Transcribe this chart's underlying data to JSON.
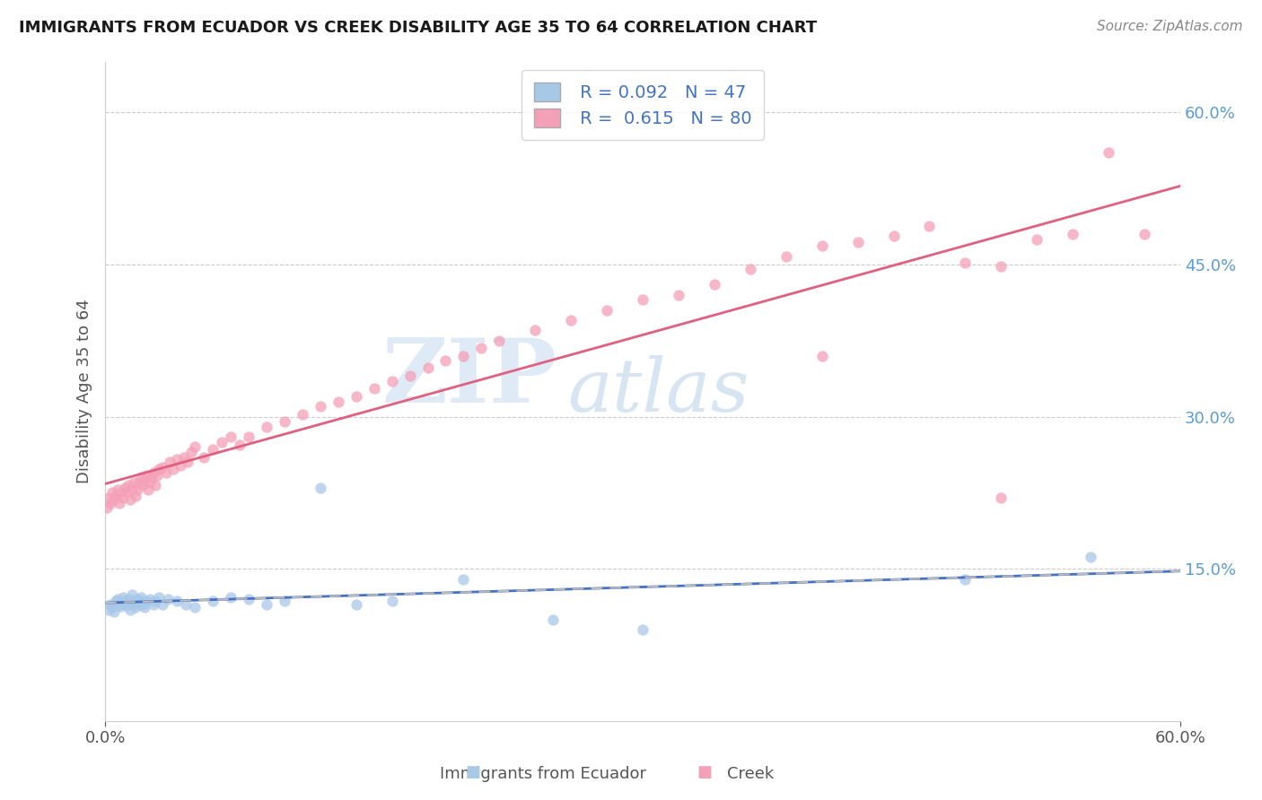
{
  "title": "IMMIGRANTS FROM ECUADOR VS CREEK DISABILITY AGE 35 TO 64 CORRELATION CHART",
  "source_text": "Source: ZipAtlas.com",
  "ylabel": "Disability Age 35 to 64",
  "legend_label_1": "Immigrants from Ecuador",
  "legend_label_2": "Creek",
  "r1": 0.092,
  "n1": 47,
  "r2": 0.615,
  "n2": 80,
  "xmin": 0.0,
  "xmax": 0.6,
  "ymin": 0.0,
  "ymax": 0.65,
  "y_ticks": [
    0.15,
    0.3,
    0.45,
    0.6
  ],
  "y_tick_labels": [
    "15.0%",
    "30.0%",
    "45.0%",
    "60.0%"
  ],
  "x_tick_labels": [
    "0.0%",
    "60.0%"
  ],
  "color_ecuador": "#a8c8e8",
  "color_creek": "#f4a0b8",
  "line_color_ecuador": "#4472c4",
  "line_color_creek": "#e06080",
  "watermark_zip": "ZIP",
  "watermark_atlas": "atlas",
  "ecuador_scatter_x": [
    0.002,
    0.003,
    0.004,
    0.005,
    0.006,
    0.007,
    0.008,
    0.009,
    0.01,
    0.01,
    0.011,
    0.012,
    0.013,
    0.014,
    0.015,
    0.015,
    0.016,
    0.017,
    0.018,
    0.019,
    0.02,
    0.02,
    0.021,
    0.022,
    0.023,
    0.025,
    0.027,
    0.028,
    0.03,
    0.032,
    0.035,
    0.04,
    0.045,
    0.05,
    0.06,
    0.07,
    0.08,
    0.09,
    0.1,
    0.12,
    0.14,
    0.16,
    0.2,
    0.25,
    0.3,
    0.48,
    0.55
  ],
  "ecuador_scatter_y": [
    0.11,
    0.115,
    0.112,
    0.108,
    0.118,
    0.12,
    0.115,
    0.113,
    0.116,
    0.122,
    0.118,
    0.114,
    0.12,
    0.11,
    0.115,
    0.125,
    0.118,
    0.112,
    0.12,
    0.115,
    0.118,
    0.122,
    0.115,
    0.112,
    0.118,
    0.12,
    0.115,
    0.118,
    0.122,
    0.115,
    0.12,
    0.118,
    0.115,
    0.112,
    0.118,
    0.122,
    0.12,
    0.115,
    0.118,
    0.23,
    0.115,
    0.118,
    0.14,
    0.1,
    0.09,
    0.14,
    0.162
  ],
  "creek_scatter_x": [
    0.001,
    0.002,
    0.003,
    0.004,
    0.005,
    0.006,
    0.007,
    0.008,
    0.009,
    0.01,
    0.011,
    0.012,
    0.013,
    0.014,
    0.015,
    0.016,
    0.017,
    0.018,
    0.019,
    0.02,
    0.021,
    0.022,
    0.023,
    0.024,
    0.025,
    0.026,
    0.027,
    0.028,
    0.029,
    0.03,
    0.032,
    0.034,
    0.036,
    0.038,
    0.04,
    0.042,
    0.044,
    0.046,
    0.048,
    0.05,
    0.055,
    0.06,
    0.065,
    0.07,
    0.075,
    0.08,
    0.09,
    0.1,
    0.11,
    0.12,
    0.13,
    0.14,
    0.15,
    0.16,
    0.17,
    0.18,
    0.19,
    0.2,
    0.21,
    0.22,
    0.24,
    0.26,
    0.28,
    0.3,
    0.32,
    0.34,
    0.36,
    0.38,
    0.4,
    0.42,
    0.44,
    0.46,
    0.48,
    0.5,
    0.52,
    0.54,
    0.56,
    0.58,
    0.4,
    0.5
  ],
  "creek_scatter_y": [
    0.21,
    0.22,
    0.215,
    0.225,
    0.218,
    0.222,
    0.228,
    0.215,
    0.225,
    0.22,
    0.23,
    0.225,
    0.232,
    0.218,
    0.228,
    0.235,
    0.222,
    0.228,
    0.235,
    0.24,
    0.232,
    0.238,
    0.242,
    0.228,
    0.235,
    0.24,
    0.245,
    0.232,
    0.242,
    0.248,
    0.25,
    0.245,
    0.255,
    0.248,
    0.258,
    0.252,
    0.26,
    0.255,
    0.265,
    0.27,
    0.26,
    0.268,
    0.275,
    0.28,
    0.272,
    0.28,
    0.29,
    0.295,
    0.302,
    0.31,
    0.315,
    0.32,
    0.328,
    0.335,
    0.34,
    0.348,
    0.355,
    0.36,
    0.368,
    0.375,
    0.385,
    0.395,
    0.405,
    0.415,
    0.42,
    0.43,
    0.445,
    0.458,
    0.468,
    0.472,
    0.478,
    0.488,
    0.452,
    0.448,
    0.475,
    0.48,
    0.56,
    0.48,
    0.36,
    0.22
  ]
}
